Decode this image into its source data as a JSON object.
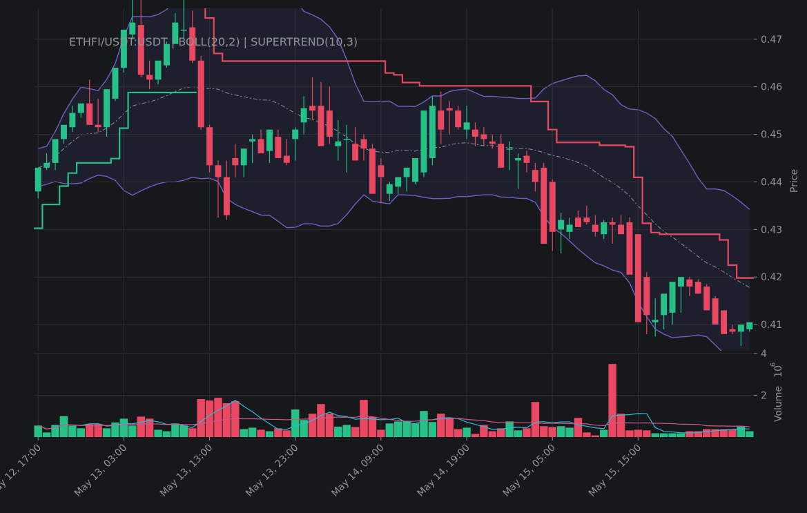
{
  "chart_data": {
    "type": "candlestick",
    "title": "ETHFI/USDT:USDT | BOLL(20,2) | SUPERTREND(10,3)",
    "price_axis_label": "Price",
    "volume_axis_label": "Volume",
    "volume_axis_multiplier": "10",
    "volume_axis_exponent": "6",
    "price_ylim": [
      0.4045,
      0.4765
    ],
    "price_ticks": [
      "0.41",
      "0.42",
      "0.43",
      "0.44",
      "0.45",
      "0.46",
      "0.47"
    ],
    "volume_ylim": [
      0,
      4
    ],
    "volume_ticks": [
      "2",
      "4"
    ],
    "x_tick_labels": [
      "May 12, 17:00",
      "May 13, 03:00",
      "May 13, 13:00",
      "May 13, 23:00",
      "May 14, 09:00",
      "May 14, 19:00",
      "May 15, 05:00",
      "May 15, 15:00"
    ],
    "x_tick_bar_index": [
      0,
      10,
      20,
      30,
      40,
      50,
      60,
      70
    ],
    "grid": true,
    "colors": {
      "background": "#16181c",
      "grid": "#2c3036",
      "up": "#26c089",
      "down": "#ea4763",
      "band_upper_lower": "#6f60c4",
      "band_middle": "#8f949c",
      "band_fill": "#1f2030",
      "supertrend_up": "#26c089",
      "supertrend_down": "#ea4763",
      "volume_ma_fast": "#22c0d8",
      "volume_ma_slow": "#d0588a"
    },
    "candles": {
      "open": [
        0.438,
        0.443,
        0.444,
        0.449,
        0.4515,
        0.4545,
        0.4565,
        0.452,
        0.4515,
        0.4575,
        0.464,
        0.471,
        0.473,
        0.4625,
        0.4615,
        0.4645,
        0.469,
        0.472,
        0.4725,
        0.4655,
        0.4515,
        0.4435,
        0.441,
        0.445,
        0.4435,
        0.4485,
        0.449,
        0.4465,
        0.4495,
        0.4455,
        0.449,
        0.4525,
        0.456,
        0.456,
        0.455,
        0.4475,
        0.449,
        0.448,
        0.449,
        0.447,
        0.4435,
        0.4375,
        0.439,
        0.441,
        0.44,
        0.442,
        0.445,
        0.455,
        0.4555,
        0.455,
        0.451,
        0.451,
        0.45,
        0.4485,
        0.448,
        0.447,
        0.4445,
        0.4455,
        0.4425,
        0.443,
        0.44,
        0.43,
        0.4295,
        0.4325,
        0.4325,
        0.431,
        0.429,
        0.4315,
        0.431,
        0.4315,
        0.429,
        0.42,
        0.4105,
        0.412,
        0.4125,
        0.418,
        0.4195,
        0.419,
        0.418,
        0.4155,
        0.413,
        0.409,
        0.4085,
        0.409
      ],
      "high": [
        0.439,
        0.446,
        0.4475,
        0.4505,
        0.456,
        0.456,
        0.4615,
        0.4575,
        0.4535,
        0.4595,
        0.4675,
        0.4785,
        0.479,
        0.4655,
        0.4635,
        0.4695,
        0.4755,
        0.4785,
        0.476,
        0.4665,
        0.452,
        0.4445,
        0.4445,
        0.448,
        0.446,
        0.45,
        0.451,
        0.4505,
        0.451,
        0.449,
        0.4515,
        0.458,
        0.462,
        0.461,
        0.46,
        0.453,
        0.452,
        0.4515,
        0.45,
        0.448,
        0.445,
        0.44,
        0.441,
        0.4415,
        0.445,
        0.444,
        0.458,
        0.459,
        0.457,
        0.456,
        0.456,
        0.4525,
        0.4515,
        0.45,
        0.45,
        0.4485,
        0.446,
        0.4465,
        0.444,
        0.444,
        0.4405,
        0.4335,
        0.4325,
        0.434,
        0.435,
        0.433,
        0.432,
        0.4325,
        0.433,
        0.4325,
        0.429,
        0.421,
        0.4155,
        0.413,
        0.4135,
        0.419,
        0.42,
        0.4195,
        0.4185,
        0.416,
        0.413,
        0.41,
        0.4095,
        0.4105
      ],
      "low": [
        0.4365,
        0.4425,
        0.4425,
        0.448,
        0.4505,
        0.4535,
        0.452,
        0.4505,
        0.4495,
        0.457,
        0.463,
        0.47,
        0.462,
        0.4595,
        0.4605,
        0.464,
        0.469,
        0.47,
        0.465,
        0.451,
        0.442,
        0.4325,
        0.432,
        0.441,
        0.441,
        0.444,
        0.4465,
        0.444,
        0.4455,
        0.4435,
        0.4445,
        0.45,
        0.453,
        0.4505,
        0.448,
        0.4445,
        0.442,
        0.445,
        0.4445,
        0.442,
        0.4355,
        0.436,
        0.4375,
        0.438,
        0.4395,
        0.441,
        0.4435,
        0.448,
        0.45,
        0.451,
        0.449,
        0.4475,
        0.4475,
        0.447,
        0.446,
        0.4425,
        0.4385,
        0.442,
        0.438,
        0.442,
        0.4255,
        0.425,
        0.428,
        0.4305,
        0.431,
        0.4285,
        0.428,
        0.427,
        0.43,
        0.4275,
        0.422,
        0.408,
        0.4075,
        0.409,
        0.41,
        0.4125,
        0.416,
        0.4165,
        0.4155,
        0.412,
        0.409,
        0.408,
        0.4055,
        0.4085
      ],
      "close": [
        0.443,
        0.444,
        0.449,
        0.452,
        0.4545,
        0.4565,
        0.452,
        0.4515,
        0.4595,
        0.464,
        0.472,
        0.4735,
        0.4625,
        0.4615,
        0.4655,
        0.469,
        0.4735,
        0.472,
        0.4655,
        0.4515,
        0.4435,
        0.441,
        0.433,
        0.4435,
        0.447,
        0.449,
        0.446,
        0.451,
        0.445,
        0.444,
        0.451,
        0.4555,
        0.455,
        0.4475,
        0.4495,
        0.4485,
        0.449,
        0.4445,
        0.447,
        0.4375,
        0.441,
        0.4395,
        0.441,
        0.443,
        0.445,
        0.455,
        0.456,
        0.451,
        0.455,
        0.4515,
        0.4525,
        0.4495,
        0.449,
        0.448,
        0.443,
        0.447,
        0.445,
        0.444,
        0.44,
        0.427,
        0.4295,
        0.432,
        0.431,
        0.4305,
        0.4315,
        0.4295,
        0.4315,
        0.431,
        0.429,
        0.4205,
        0.4105,
        0.412,
        0.411,
        0.4165,
        0.419,
        0.42,
        0.418,
        0.4165,
        0.413,
        0.41,
        0.408,
        0.4085,
        0.41,
        0.4105
      ]
    },
    "volume": [
      0.55,
      0.22,
      0.58,
      1.0,
      0.55,
      0.42,
      0.62,
      0.62,
      0.42,
      0.7,
      0.88,
      0.55,
      0.98,
      0.88,
      0.35,
      0.28,
      0.65,
      0.55,
      0.42,
      1.82,
      1.75,
      1.88,
      1.62,
      1.72,
      0.38,
      0.45,
      0.35,
      0.28,
      0.42,
      0.32,
      1.32,
      0.82,
      1.12,
      1.58,
      1.12,
      0.5,
      0.58,
      0.48,
      1.78,
      0.96,
      0.35,
      0.65,
      0.75,
      0.78,
      0.65,
      1.25,
      0.72,
      1.12,
      0.92,
      0.38,
      0.45,
      0.15,
      0.58,
      0.28,
      0.42,
      0.75,
      0.32,
      0.42,
      1.68,
      0.52,
      0.48,
      0.52,
      0.45,
      0.92,
      0.22,
      0.08,
      0.35,
      3.5,
      1.12,
      0.32,
      0.35,
      0.32,
      0.18,
      0.18,
      0.18,
      0.18,
      0.28,
      0.28,
      0.38,
      0.38,
      0.38,
      0.38,
      0.5,
      0.28
    ]
  }
}
